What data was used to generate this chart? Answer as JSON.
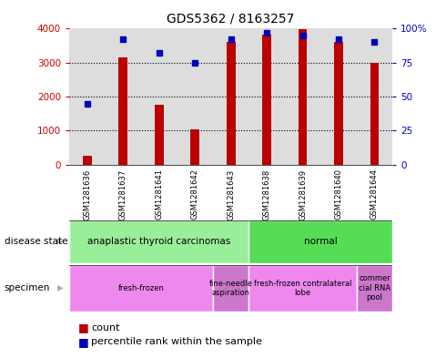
{
  "title": "GDS5362 / 8163257",
  "samples": [
    "GSM1281636",
    "GSM1281637",
    "GSM1281641",
    "GSM1281642",
    "GSM1281643",
    "GSM1281638",
    "GSM1281639",
    "GSM1281640",
    "GSM1281644"
  ],
  "counts": [
    250,
    3150,
    1750,
    1040,
    3620,
    3820,
    3990,
    3600,
    3000
  ],
  "percentile_ranks": [
    45,
    92,
    82,
    75,
    92,
    97,
    95,
    92,
    90
  ],
  "ylim_left": [
    0,
    4000
  ],
  "ylim_right": [
    0,
    100
  ],
  "yticks_left": [
    0,
    1000,
    2000,
    3000,
    4000
  ],
  "yticks_right": [
    0,
    25,
    50,
    75,
    100
  ],
  "bar_color": "#bb0000",
  "dot_color": "#0000bb",
  "disease_state_row": [
    {
      "label": "anaplastic thyroid carcinomas",
      "start": 0,
      "end": 5,
      "color": "#99ee99"
    },
    {
      "label": "normal",
      "start": 5,
      "end": 9,
      "color": "#55dd55"
    }
  ],
  "specimen_row": [
    {
      "label": "fresh-frozen",
      "start": 0,
      "end": 4,
      "color": "#ee88ee"
    },
    {
      "label": "fine-needle\naspiration",
      "start": 4,
      "end": 5,
      "color": "#cc77cc"
    },
    {
      "label": "fresh-frozen contralateral\nlobe",
      "start": 5,
      "end": 8,
      "color": "#ee88ee"
    },
    {
      "label": "commer\ncial RNA\npool",
      "start": 8,
      "end": 9,
      "color": "#cc77cc"
    }
  ],
  "legend_count_label": "count",
  "legend_pct_label": "percentile rank within the sample",
  "left_label_color": "#cc0000",
  "right_label_color": "#0000cc",
  "background_color": "#ffffff",
  "plot_bg_color": "#dddddd",
  "xlabel_bg_color": "#cccccc",
  "row_label_disease": "disease state",
  "row_label_specimen": "specimen"
}
